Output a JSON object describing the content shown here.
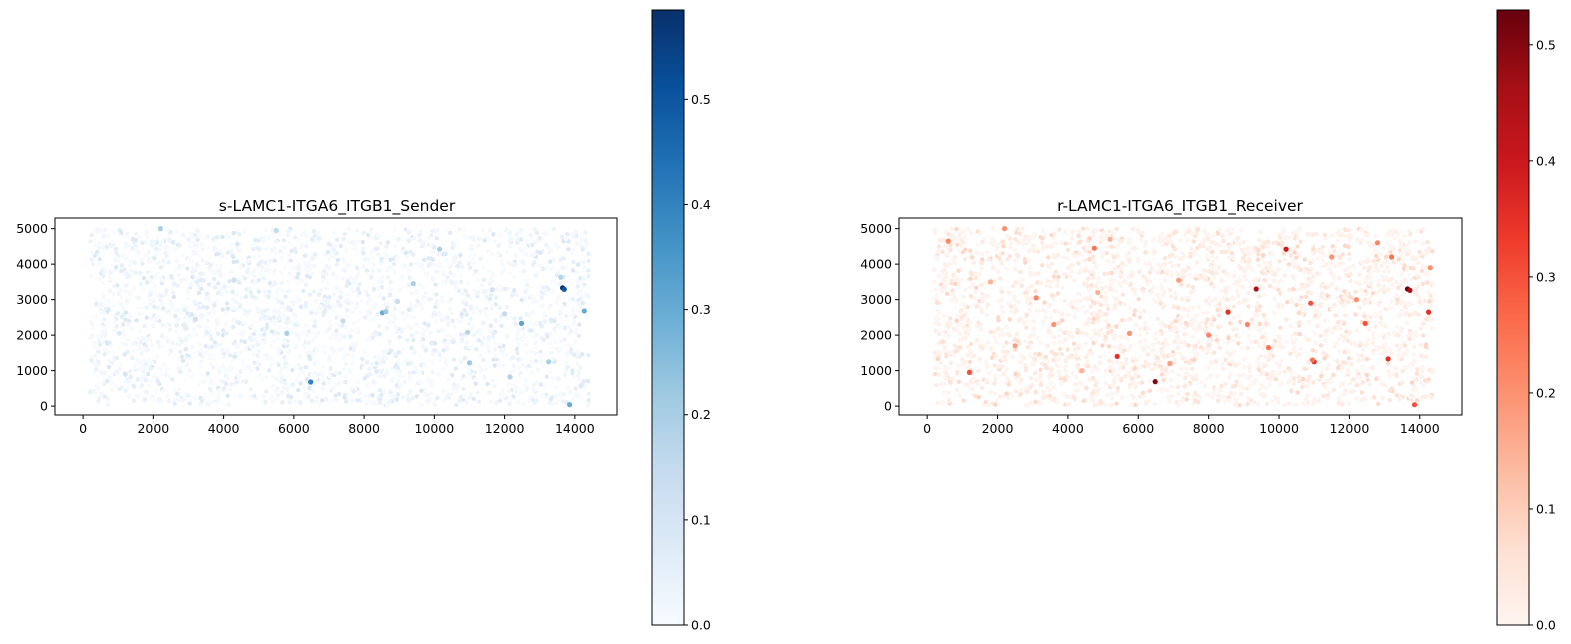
{
  "chart_data": [
    {
      "type": "scatter",
      "title": "s-LAMC1-ITGA6_ITGB1_Sender",
      "xlabel": "",
      "ylabel": "",
      "xlim": [
        -800,
        15200
      ],
      "ylim": [
        -250,
        5300
      ],
      "xticks": [
        0,
        2000,
        4000,
        6000,
        8000,
        10000,
        12000,
        14000
      ],
      "yticks": [
        0,
        1000,
        2000,
        3000,
        4000,
        5000
      ],
      "colormap": "Blues",
      "colors": {
        "low": "#f7fbff",
        "mid": "#6baed6",
        "high": "#08306b"
      },
      "colorbar": {
        "min": 0.0,
        "max": 0.585,
        "ticks": [
          0.0,
          0.1,
          0.2,
          0.3,
          0.4,
          0.5
        ]
      },
      "grid": false,
      "highlight_points": [
        {
          "x": 13650,
          "y": 3330,
          "value": 0.585
        },
        {
          "x": 13700,
          "y": 3290,
          "value": 0.5
        },
        {
          "x": 6480,
          "y": 680,
          "value": 0.4
        },
        {
          "x": 12480,
          "y": 2330,
          "value": 0.32
        },
        {
          "x": 14270,
          "y": 2680,
          "value": 0.3
        },
        {
          "x": 8520,
          "y": 2630,
          "value": 0.3
        },
        {
          "x": 8620,
          "y": 2660,
          "value": 0.22
        },
        {
          "x": 13850,
          "y": 40,
          "value": 0.3
        },
        {
          "x": 9400,
          "y": 3450,
          "value": 0.2
        },
        {
          "x": 10150,
          "y": 4420,
          "value": 0.2
        },
        {
          "x": 2200,
          "y": 5000,
          "value": 0.2
        },
        {
          "x": 11000,
          "y": 1220,
          "value": 0.22
        },
        {
          "x": 10950,
          "y": 2080,
          "value": 0.18
        },
        {
          "x": 12150,
          "y": 820,
          "value": 0.18
        },
        {
          "x": 13250,
          "y": 1250,
          "value": 0.2
        },
        {
          "x": 12000,
          "y": 2600,
          "value": 0.15
        },
        {
          "x": 5800,
          "y": 2050,
          "value": 0.2
        },
        {
          "x": 4300,
          "y": 3550,
          "value": 0.12
        },
        {
          "x": 7400,
          "y": 2400,
          "value": 0.15
        },
        {
          "x": 3200,
          "y": 2450,
          "value": 0.12
        },
        {
          "x": 13600,
          "y": 3630,
          "value": 0.18
        },
        {
          "x": 5500,
          "y": 4950,
          "value": 0.15
        },
        {
          "x": 1200,
          "y": 900,
          "value": 0.1
        },
        {
          "x": 8950,
          "y": 2950,
          "value": 0.14
        },
        {
          "x": 11650,
          "y": 3280,
          "value": 0.12
        }
      ]
    },
    {
      "type": "scatter",
      "title": "r-LAMC1-ITGA6_ITGB1_Receiver",
      "xlabel": "",
      "ylabel": "",
      "xlim": [
        -800,
        15200
      ],
      "ylim": [
        -250,
        5300
      ],
      "xticks": [
        0,
        2000,
        4000,
        6000,
        8000,
        10000,
        12000,
        14000
      ],
      "yticks": [
        0,
        1000,
        2000,
        3000,
        4000,
        5000
      ],
      "colormap": "Reds",
      "colors": {
        "low": "#fff5f0",
        "mid": "#fb6a4a",
        "high": "#67000d"
      },
      "colorbar": {
        "min": 0.0,
        "max": 0.53,
        "ticks": [
          0.0,
          0.1,
          0.2,
          0.3,
          0.4,
          0.5
        ]
      },
      "grid": false,
      "highlight_points": [
        {
          "x": 13650,
          "y": 3300,
          "value": 0.53
        },
        {
          "x": 13720,
          "y": 3260,
          "value": 0.45
        },
        {
          "x": 6480,
          "y": 690,
          "value": 0.5
        },
        {
          "x": 9350,
          "y": 3300,
          "value": 0.45
        },
        {
          "x": 10200,
          "y": 4420,
          "value": 0.4
        },
        {
          "x": 14250,
          "y": 2650,
          "value": 0.35
        },
        {
          "x": 13850,
          "y": 40,
          "value": 0.3
        },
        {
          "x": 11000,
          "y": 1250,
          "value": 0.35
        },
        {
          "x": 12450,
          "y": 2330,
          "value": 0.3
        },
        {
          "x": 8550,
          "y": 2650,
          "value": 0.35
        },
        {
          "x": 13100,
          "y": 1330,
          "value": 0.35
        },
        {
          "x": 5400,
          "y": 1400,
          "value": 0.35
        },
        {
          "x": 10900,
          "y": 2900,
          "value": 0.3
        },
        {
          "x": 1200,
          "y": 950,
          "value": 0.3
        },
        {
          "x": 600,
          "y": 4650,
          "value": 0.22
        },
        {
          "x": 9700,
          "y": 1650,
          "value": 0.25
        },
        {
          "x": 10950,
          "y": 1300,
          "value": 0.25
        },
        {
          "x": 5750,
          "y": 2050,
          "value": 0.2
        },
        {
          "x": 3100,
          "y": 3050,
          "value": 0.22
        },
        {
          "x": 4750,
          "y": 4450,
          "value": 0.25
        },
        {
          "x": 2200,
          "y": 5000,
          "value": 0.2
        },
        {
          "x": 8000,
          "y": 2000,
          "value": 0.22
        },
        {
          "x": 11500,
          "y": 4200,
          "value": 0.2
        },
        {
          "x": 12800,
          "y": 4600,
          "value": 0.22
        },
        {
          "x": 3600,
          "y": 2300,
          "value": 0.2
        },
        {
          "x": 7150,
          "y": 3550,
          "value": 0.18
        },
        {
          "x": 9100,
          "y": 2300,
          "value": 0.22
        },
        {
          "x": 2500,
          "y": 1700,
          "value": 0.18
        },
        {
          "x": 4400,
          "y": 1000,
          "value": 0.15
        },
        {
          "x": 12200,
          "y": 3000,
          "value": 0.2
        },
        {
          "x": 14300,
          "y": 3900,
          "value": 0.2
        },
        {
          "x": 4850,
          "y": 3200,
          "value": 0.15
        },
        {
          "x": 6900,
          "y": 1200,
          "value": 0.18
        },
        {
          "x": 5200,
          "y": 4700,
          "value": 0.15
        },
        {
          "x": 1800,
          "y": 3500,
          "value": 0.15
        },
        {
          "x": 13200,
          "y": 4200,
          "value": 0.25
        }
      ]
    }
  ]
}
